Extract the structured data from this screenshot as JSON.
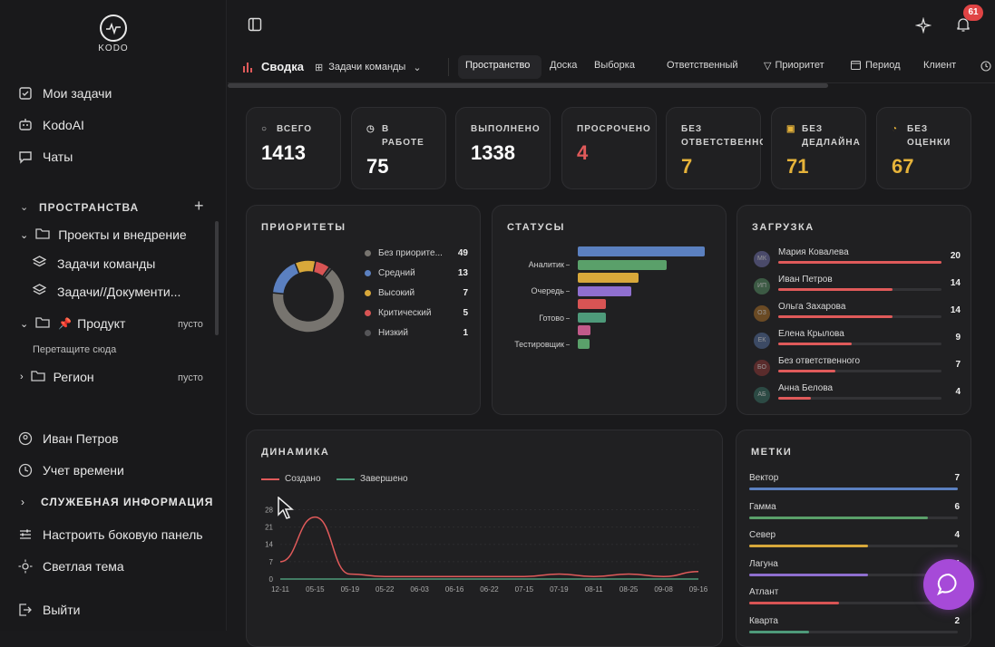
{
  "app": {
    "logo_text": "KODO"
  },
  "sidebar": {
    "items": [
      {
        "label": "Мои задачи",
        "icon": "checkbox-icon"
      },
      {
        "label": "KodoAI",
        "icon": "robot-icon"
      },
      {
        "label": "Чаты",
        "icon": "chat-icon"
      }
    ],
    "spaces_title": "ПРОСТРАНСТВА",
    "tree": {
      "projects": "Проекты и внедрение",
      "team_tasks": "Задачи команды",
      "docs": "Задачи//Документи...",
      "product": "Продукт",
      "product_empty": "пусто",
      "drop_hint": "Перетащите сюда",
      "region": "Регион",
      "region_empty": "пусто"
    },
    "bottom": {
      "user": "Иван Петров",
      "time": "Учет времени",
      "service_info": "СЛУЖЕБНАЯ ИНФОРМАЦИЯ",
      "configure": "Настроить боковую панель",
      "theme": "Светлая тема",
      "logout": "Выйти"
    }
  },
  "topbar": {
    "notifications_count": "61"
  },
  "tabs": {
    "summary": "Сводка",
    "view_select": "Задачи команды",
    "space": "Пространство",
    "board": "Доска",
    "selection": "Выборка",
    "assignee": "Ответственный",
    "priority": "Приоритет",
    "period": "Период",
    "client": "Клиент"
  },
  "stats": [
    {
      "label1": "ВСЕГО",
      "label2": "",
      "value": "1413",
      "color": "#ffffff"
    },
    {
      "label1": "В",
      "label2": "РАБОТЕ",
      "value": "75",
      "color": "#ffffff"
    },
    {
      "label1": "ВЫПОЛНЕНО",
      "label2": "",
      "value": "1338",
      "color": "#ffffff"
    },
    {
      "label1": "ПРОСРОЧЕНО",
      "label2": "",
      "value": "4",
      "color": "#e05a5a"
    },
    {
      "label1": "БЕЗ",
      "label2": "ОТВЕТСТВЕННОГ",
      "value": "7",
      "color": "#e6b33a"
    },
    {
      "label1": "БЕЗ",
      "label2": "ДЕДЛАЙНА",
      "value": "71",
      "color": "#e6b33a"
    },
    {
      "label1": "БЕЗ",
      "label2": "ОЦЕНКИ",
      "value": "67",
      "color": "#e6b33a"
    }
  ],
  "priorities": {
    "title": "ПРИОРИТЕТЫ",
    "items": [
      {
        "label": "Без приорите...",
        "value": 49,
        "color": "#77746f"
      },
      {
        "label": "Средний",
        "value": 13,
        "color": "#5b80c0"
      },
      {
        "label": "Высокий",
        "value": 7,
        "color": "#d8a83a"
      },
      {
        "label": "Критический",
        "value": 5,
        "color": "#d85454"
      },
      {
        "label": "Низкий",
        "value": 1,
        "color": "#555558"
      }
    ]
  },
  "statuses": {
    "title": "СТАТУСЫ",
    "labels": [
      "Аналитик",
      "Очередь",
      "Готово",
      "Тестировщик"
    ],
    "bars": [
      {
        "value": 100,
        "color": "#5b80c0"
      },
      {
        "value": 70,
        "color": "#5aa06a"
      },
      {
        "value": 48,
        "color": "#d8a83a"
      },
      {
        "value": 42,
        "color": "#8f6fcf"
      },
      {
        "value": 22,
        "color": "#d85454"
      },
      {
        "value": 22,
        "color": "#4e9a7a"
      },
      {
        "value": 10,
        "color": "#c25a8a"
      },
      {
        "value": 9,
        "color": "#5aa06a"
      }
    ]
  },
  "load": {
    "title": "ЗАГРУЗКА",
    "items": [
      {
        "initials": "МК",
        "name": "Мария Ковалева",
        "value": 20,
        "color": "#4a4a6a"
      },
      {
        "initials": "ИП",
        "name": "Иван Петров",
        "value": 14,
        "color": "#3c5a44"
      },
      {
        "initials": "ОЗ",
        "name": "Ольга Захарова",
        "value": 14,
        "color": "#6a4a24"
      },
      {
        "initials": "ЕК",
        "name": "Елена Крылова",
        "value": 9,
        "color": "#3c4a64"
      },
      {
        "initials": "БО",
        "name": "Без ответственного",
        "value": 7,
        "color": "#5a2c2c"
      },
      {
        "initials": "АБ",
        "name": "Анна Белова",
        "value": 4,
        "color": "#2c4a44"
      }
    ]
  },
  "dynamics": {
    "title": "ДИНАМИКА",
    "legend_created": "Создано",
    "legend_done": "Завершено",
    "color_created": "#e05a5a",
    "color_done": "#4e9a7a"
  },
  "chart_data": {
    "type": "line",
    "title": "ДИНАМИКА",
    "x": [
      "12-11",
      "05-15",
      "05-19",
      "05-22",
      "06-03",
      "06-16",
      "06-22",
      "07-15",
      "07-19",
      "08-11",
      "08-25",
      "09-08",
      "09-16"
    ],
    "yticks": [
      0,
      7,
      14,
      21,
      28
    ],
    "ylim": [
      0,
      30
    ],
    "series": [
      {
        "name": "Создано",
        "values": [
          7,
          25,
          2,
          1,
          1,
          1,
          1,
          1,
          2,
          1,
          2,
          1,
          3
        ]
      },
      {
        "name": "Завершено",
        "values": [
          0,
          0,
          0,
          0,
          0,
          0,
          0,
          0,
          0,
          0,
          0,
          0,
          0
        ]
      }
    ]
  },
  "tags": {
    "title": "МЕТКИ",
    "items": [
      {
        "name": "Вектор",
        "value": 7,
        "color": "#5b80c0"
      },
      {
        "name": "Гамма",
        "value": 6,
        "color": "#5aa06a"
      },
      {
        "name": "Север",
        "value": 4,
        "color": "#d8a83a"
      },
      {
        "name": "Лагуна",
        "value": 4,
        "color": "#8f6fcf"
      },
      {
        "name": "Атлант",
        "value": 3,
        "color": "#d85454"
      },
      {
        "name": "Кварта",
        "value": 2,
        "color": "#4e9a7a"
      }
    ]
  }
}
